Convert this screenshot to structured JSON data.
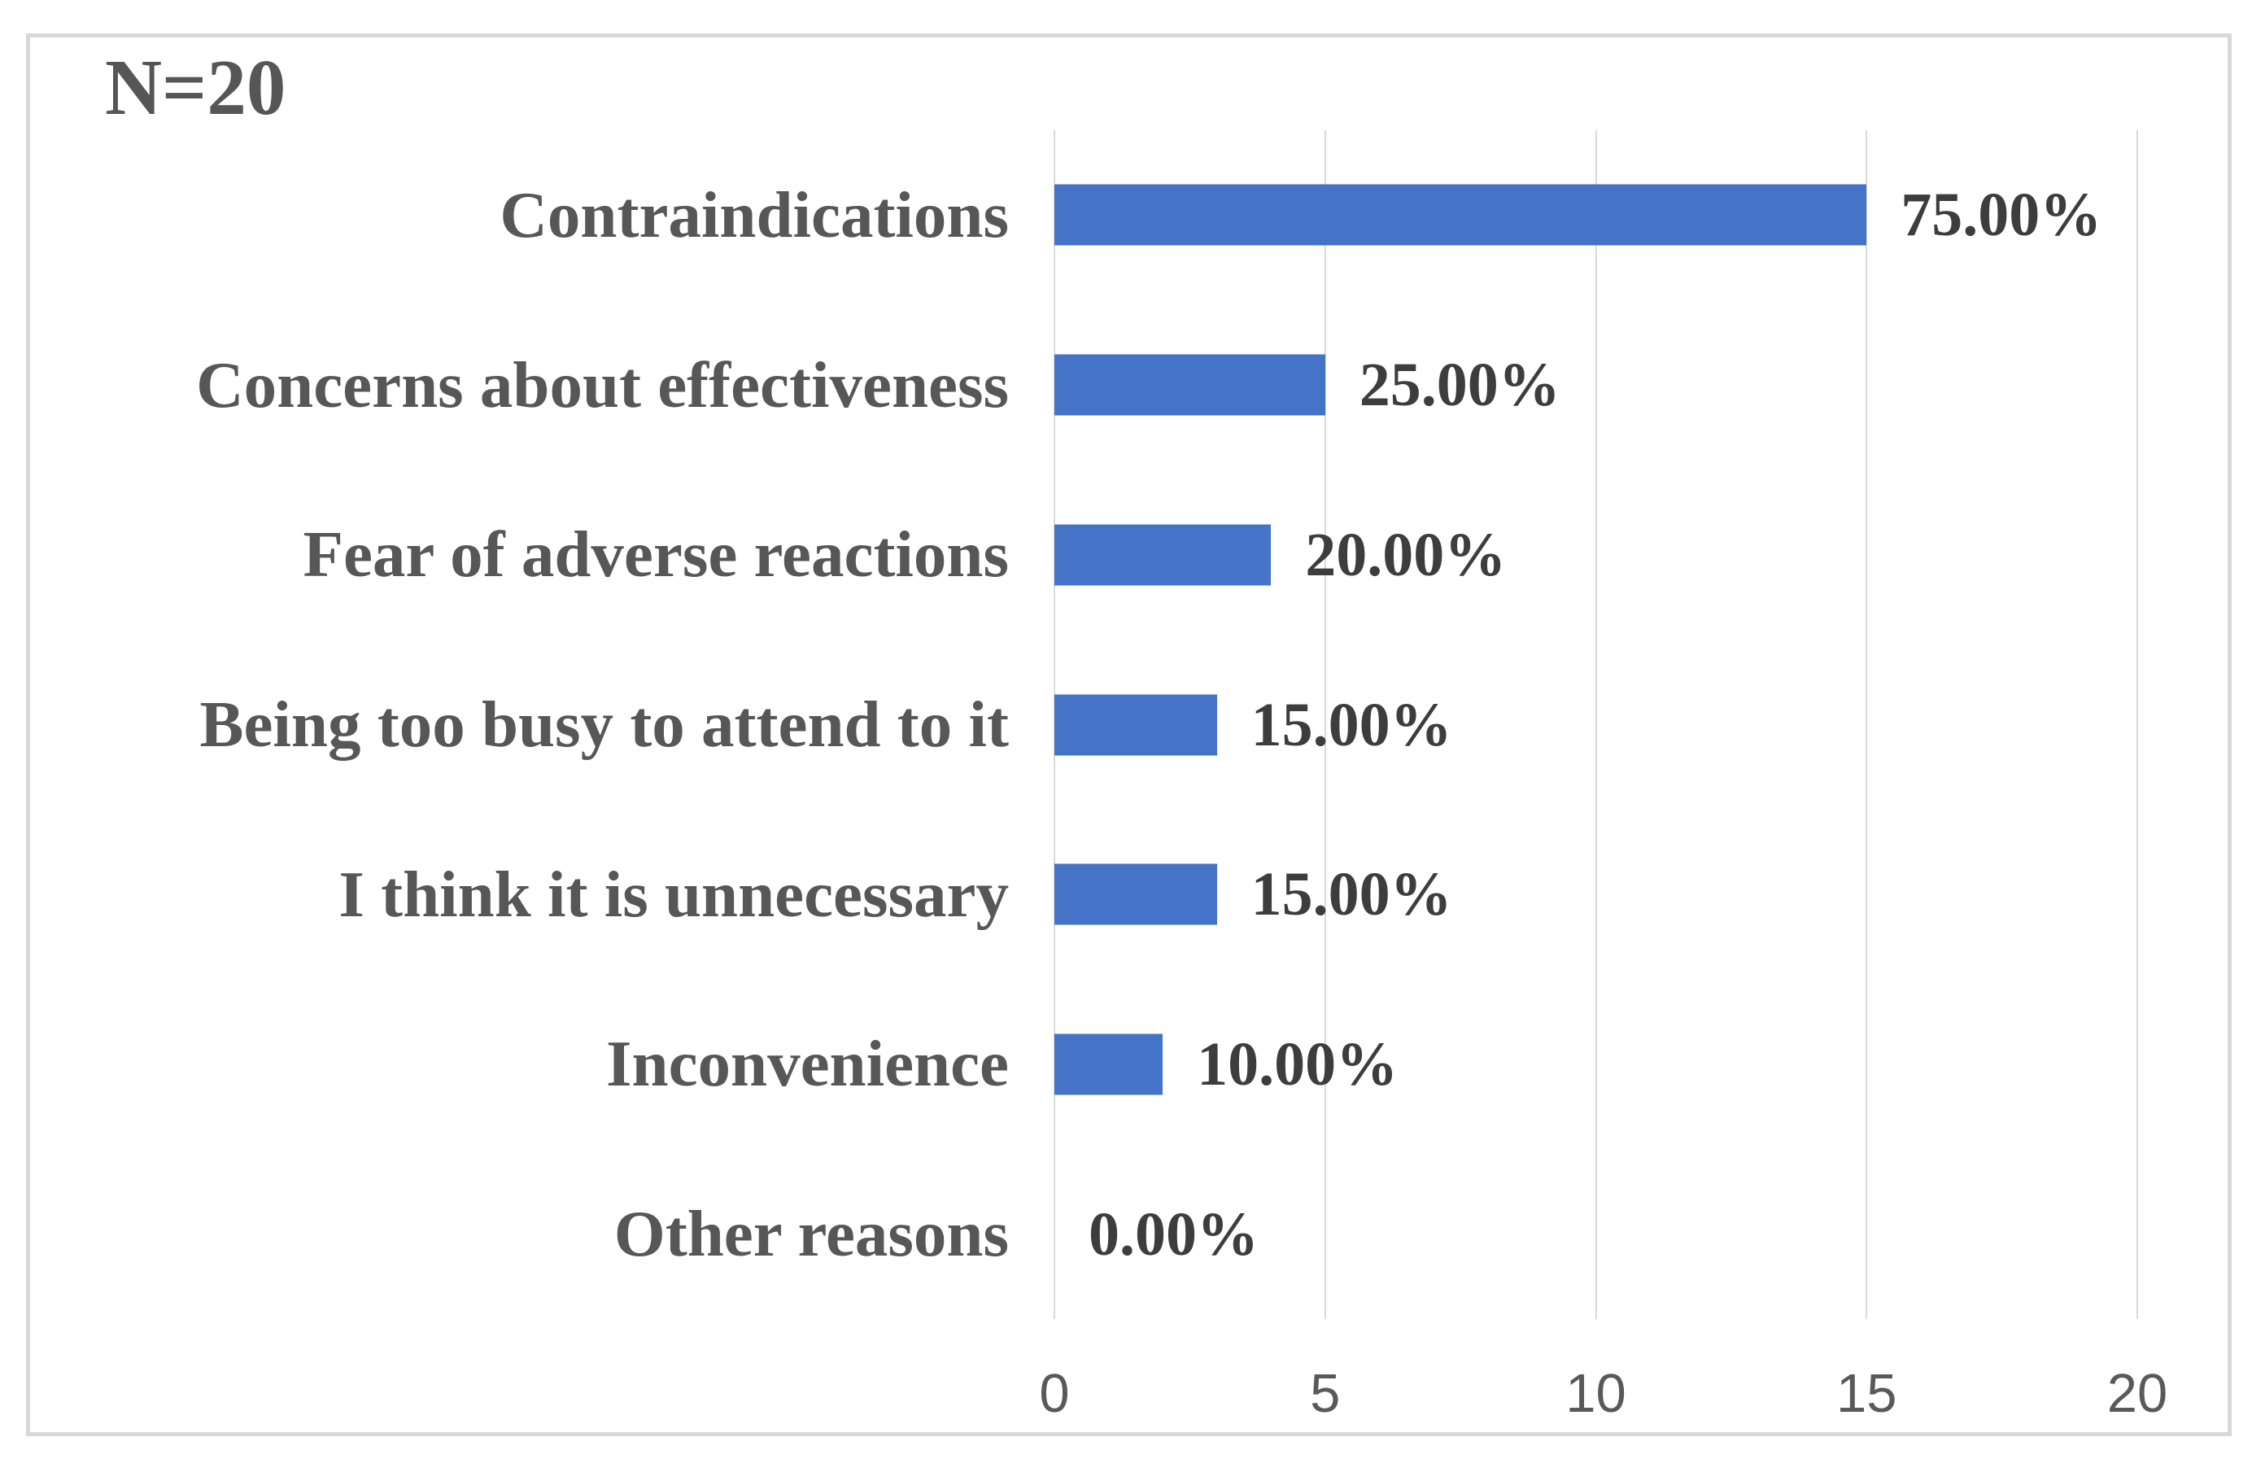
{
  "chart_data": {
    "type": "bar",
    "orientation": "horizontal",
    "title": "N=20",
    "categories": [
      "Contraindications",
      "Concerns about effectiveness",
      "Fear of adverse reactions",
      "Being too busy to attend to it",
      "I think it is unnecessary",
      "Inconvenience",
      "Other reasons"
    ],
    "values": [
      15,
      5,
      4,
      3,
      3,
      2,
      0
    ],
    "value_labels": [
      "75.00%",
      "25.00%",
      "20.00%",
      "15.00%",
      "15.00%",
      "10.00%",
      "0.00%"
    ],
    "x_ticks": [
      "0",
      "5",
      "10",
      "15",
      "20"
    ],
    "x_tick_values": [
      0,
      5,
      10,
      15,
      20
    ],
    "xlim": [
      0,
      20
    ],
    "grid": true,
    "legend": "none",
    "xlabel": "",
    "ylabel": "",
    "colors": {
      "bar": "#4573c7",
      "category_label": "#575757",
      "value_label": "#3d3d3d",
      "tick_label": "#595959",
      "gridline": "#d9d9d9",
      "chart_border": "#d8d8d8",
      "background": "#ffffff"
    }
  }
}
